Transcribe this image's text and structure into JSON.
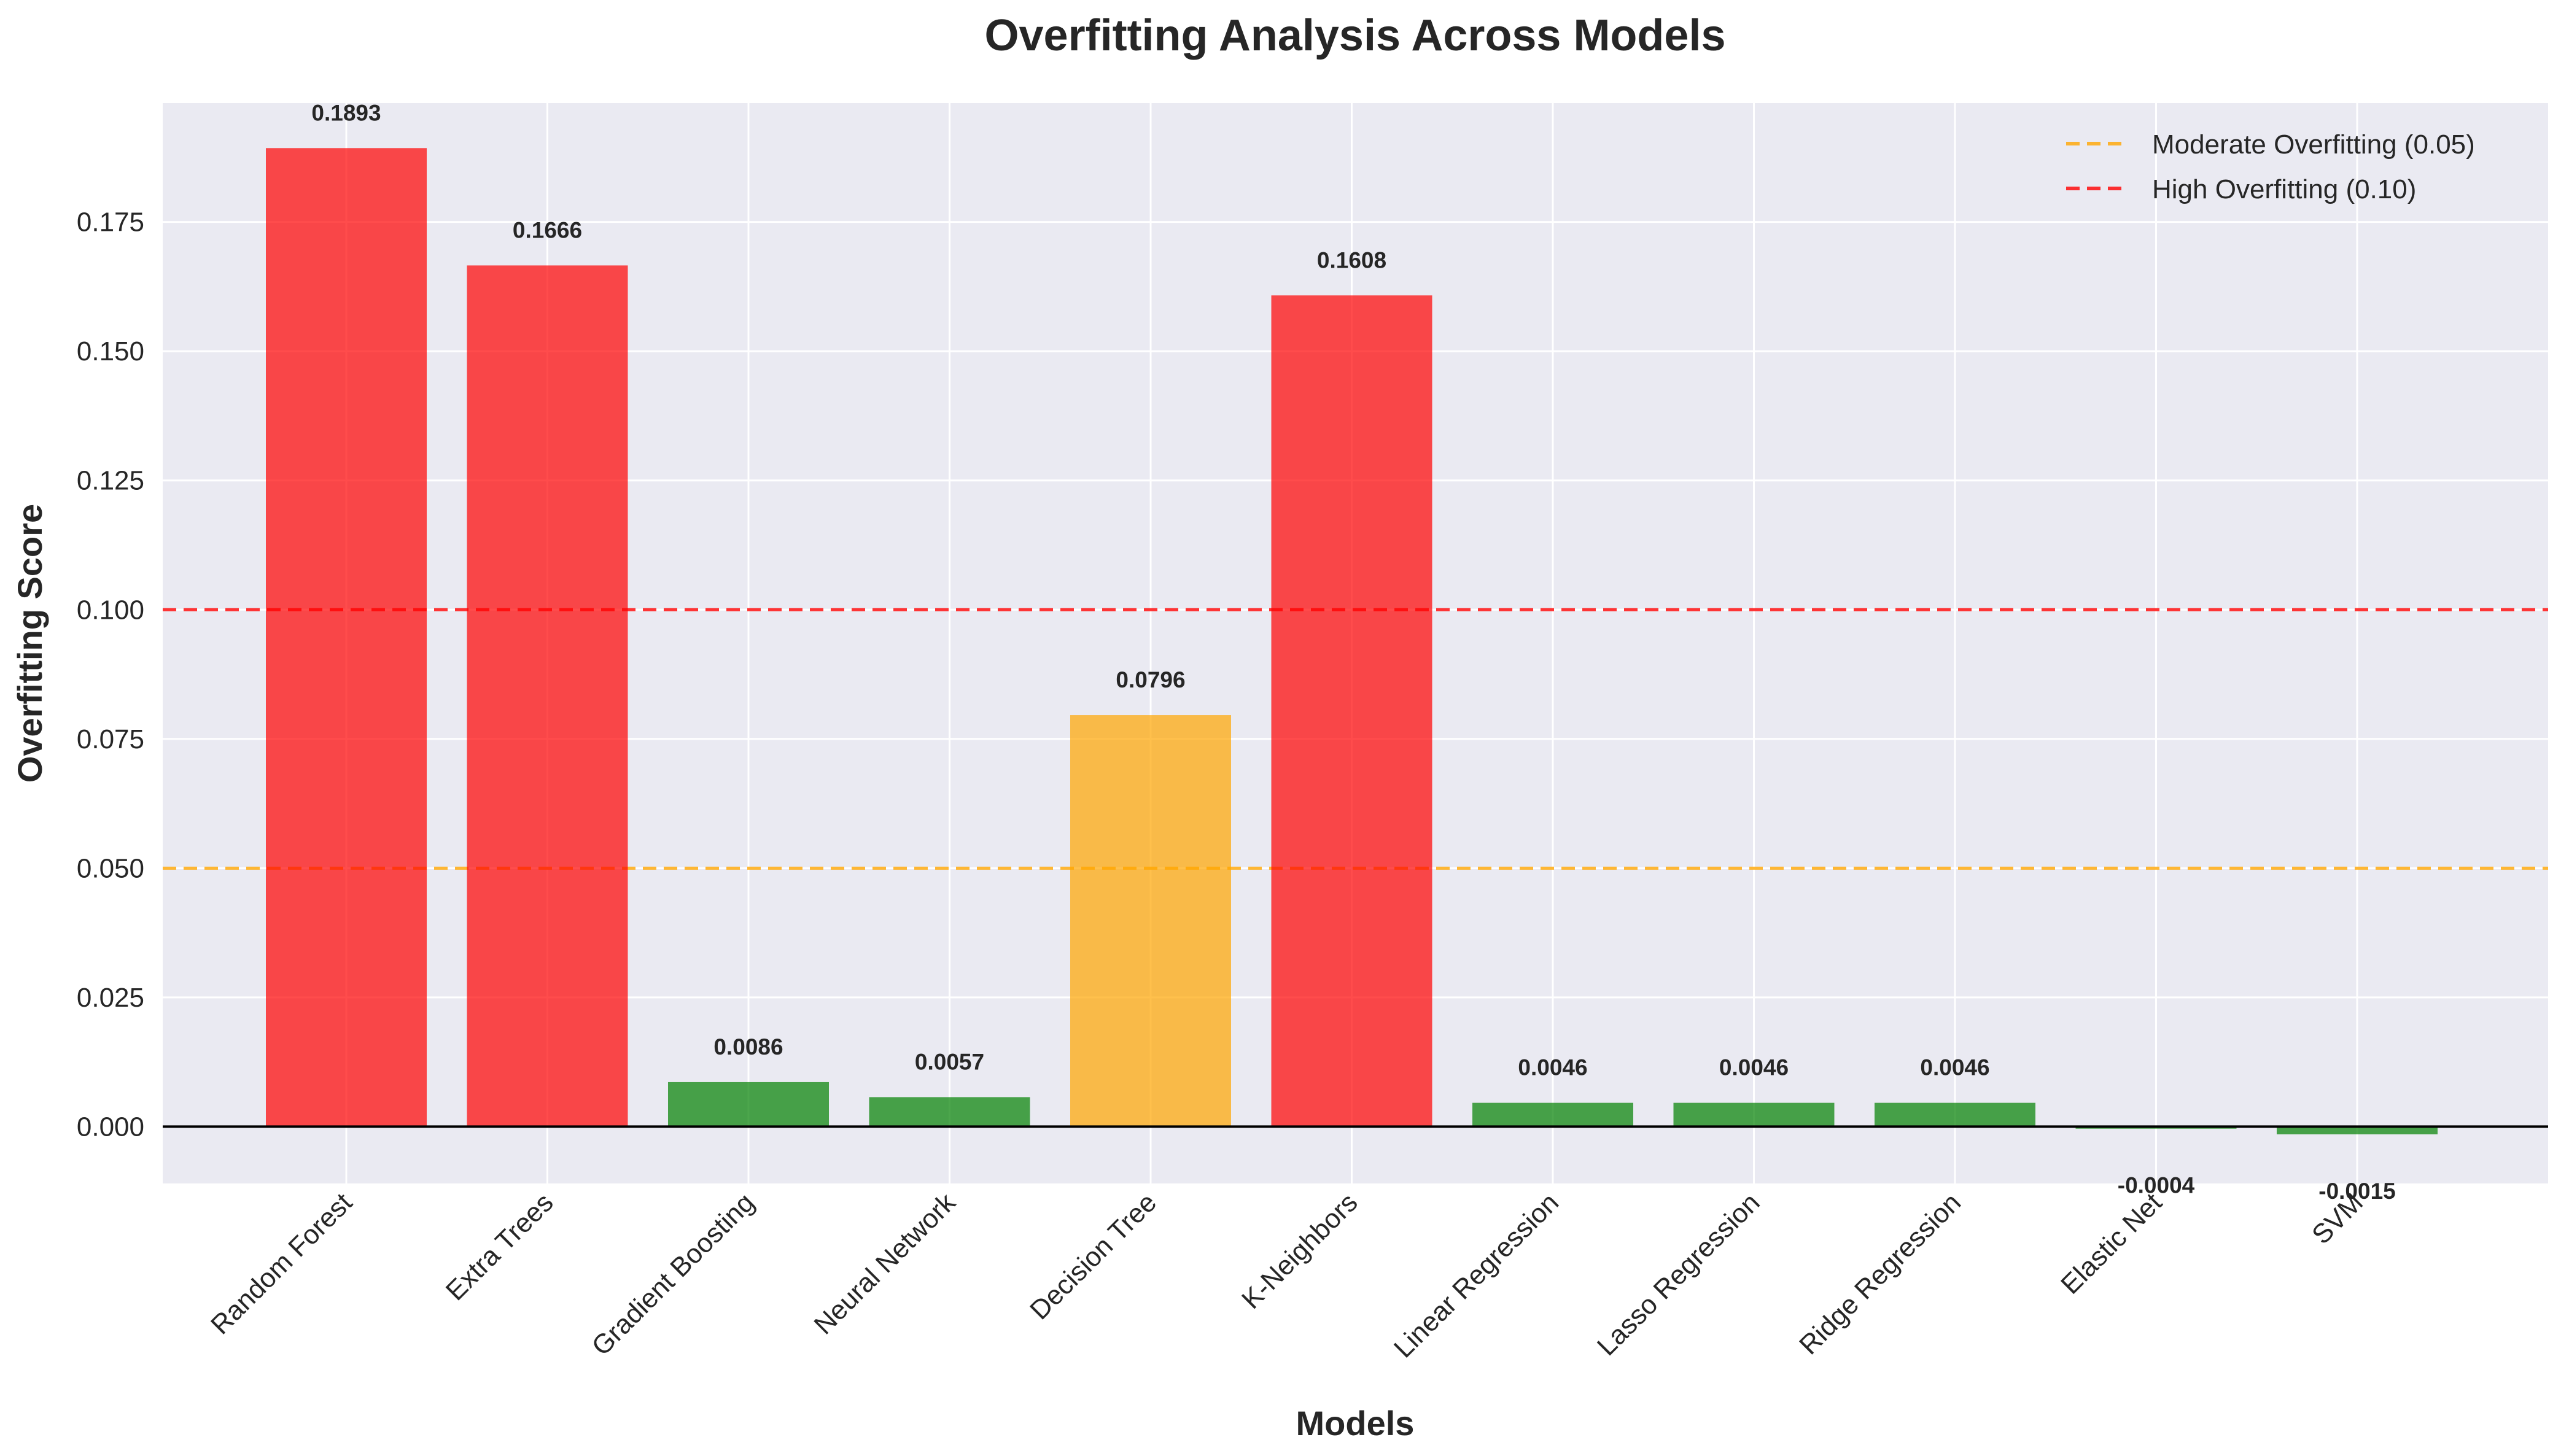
{
  "chart_data": {
    "type": "bar",
    "title": "Overfitting Analysis Across Models",
    "xlabel": "Models",
    "ylabel": "Overfitting Score",
    "categories": [
      "Random Forest",
      "Extra Trees",
      "Gradient Boosting",
      "Neural Network",
      "Decision Tree",
      "K-Neighbors",
      "Linear Regression",
      "Lasso Regression",
      "Ridge Regression",
      "Elastic Net",
      "SVM"
    ],
    "values": [
      0.1893,
      0.1666,
      0.0086,
      0.0057,
      0.0796,
      0.1608,
      0.0046,
      0.0046,
      0.0046,
      -0.0004,
      -0.0015
    ],
    "value_labels": [
      "0.1893",
      "0.1666",
      "0.0086",
      "0.0057",
      "0.0796",
      "0.1608",
      "0.0046",
      "0.0046",
      "0.0046",
      "-0.0004",
      "-0.0015"
    ],
    "bar_colors": [
      "#ff0000",
      "#ff0000",
      "#008000",
      "#008000",
      "#ffa500",
      "#ff0000",
      "#008000",
      "#008000",
      "#008000",
      "#008000",
      "#008000"
    ],
    "ylim": [
      -0.011,
      0.198
    ],
    "yticks": [
      0.0,
      0.025,
      0.05,
      0.075,
      0.1,
      0.125,
      0.15,
      0.175
    ],
    "ytick_labels": [
      "0.000",
      "0.025",
      "0.050",
      "0.075",
      "0.100",
      "0.125",
      "0.150",
      "0.175"
    ],
    "thresholds": [
      {
        "name": "Moderate Overfitting (0.05)",
        "value": 0.05,
        "color": "#ffa500"
      },
      {
        "name": "High Overfitting (0.10)",
        "value": 0.1,
        "color": "#ff0000"
      }
    ],
    "grid": true,
    "legend_position": "top-right",
    "background_color": "#eaeaf2"
  }
}
